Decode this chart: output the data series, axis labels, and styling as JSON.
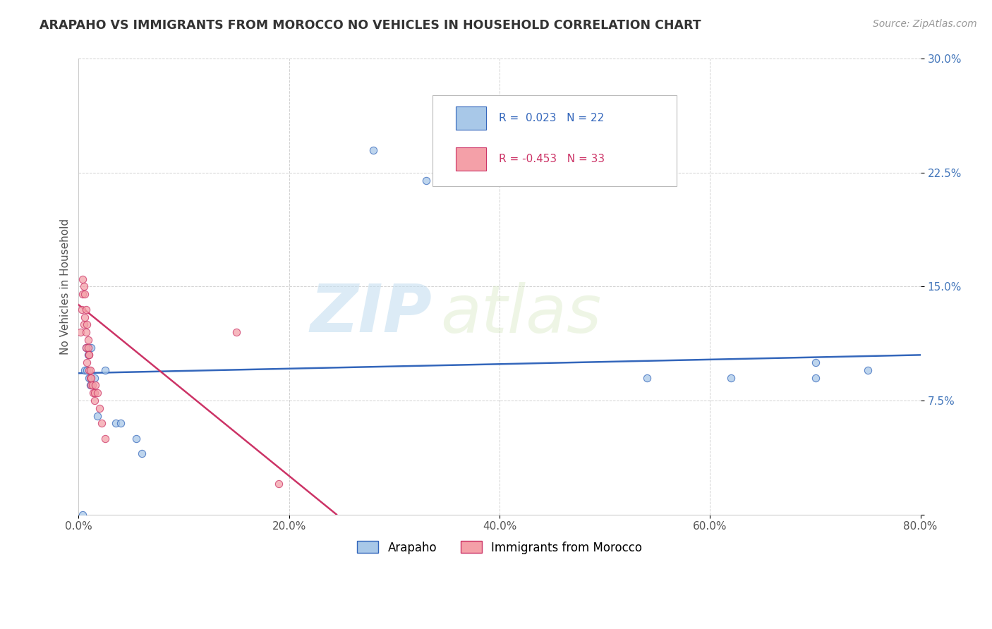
{
  "title": "ARAPAHO VS IMMIGRANTS FROM MOROCCO NO VEHICLES IN HOUSEHOLD CORRELATION CHART",
  "source": "Source: ZipAtlas.com",
  "ylabel": "No Vehicles in Household",
  "xlim": [
    0.0,
    0.8
  ],
  "ylim": [
    0.0,
    0.3
  ],
  "legend_r1": "R =  0.023",
  "legend_n1": "N = 22",
  "legend_r2": "R = -0.453",
  "legend_n2": "N = 33",
  "color_arapaho": "#a8c8e8",
  "color_morocco": "#f4a0a8",
  "color_line_arapaho": "#3366bb",
  "color_line_morocco": "#cc3366",
  "watermark_zip": "ZIP",
  "watermark_atlas": "atlas",
  "arapaho_x": [
    0.004,
    0.006,
    0.007,
    0.008,
    0.009,
    0.01,
    0.011,
    0.012,
    0.015,
    0.018,
    0.025,
    0.035,
    0.04,
    0.055,
    0.06,
    0.28,
    0.33,
    0.54,
    0.62,
    0.7,
    0.7,
    0.75
  ],
  "arapaho_y": [
    0.0,
    0.095,
    0.11,
    0.095,
    0.105,
    0.09,
    0.085,
    0.11,
    0.09,
    0.065,
    0.095,
    0.06,
    0.06,
    0.05,
    0.04,
    0.24,
    0.22,
    0.09,
    0.09,
    0.09,
    0.1,
    0.095
  ],
  "morocco_x": [
    0.002,
    0.003,
    0.004,
    0.004,
    0.005,
    0.005,
    0.006,
    0.006,
    0.007,
    0.007,
    0.007,
    0.008,
    0.008,
    0.009,
    0.009,
    0.01,
    0.01,
    0.01,
    0.011,
    0.011,
    0.012,
    0.012,
    0.013,
    0.014,
    0.015,
    0.015,
    0.016,
    0.018,
    0.02,
    0.022,
    0.025,
    0.15,
    0.19
  ],
  "morocco_y": [
    0.12,
    0.135,
    0.145,
    0.155,
    0.125,
    0.15,
    0.13,
    0.145,
    0.135,
    0.12,
    0.11,
    0.125,
    0.1,
    0.11,
    0.115,
    0.105,
    0.095,
    0.105,
    0.09,
    0.095,
    0.085,
    0.09,
    0.085,
    0.08,
    0.075,
    0.08,
    0.085,
    0.08,
    0.07,
    0.06,
    0.05,
    0.12,
    0.02
  ],
  "arapaho_line_x": [
    0.0,
    0.8
  ],
  "arapaho_line_y": [
    0.093,
    0.105
  ],
  "morocco_line_x": [
    0.0,
    0.245
  ],
  "morocco_line_y": [
    0.138,
    0.0
  ],
  "bg_color": "#ffffff",
  "grid_color": "#cccccc",
  "title_color": "#333333",
  "dot_size": 55,
  "dot_alpha": 0.75
}
